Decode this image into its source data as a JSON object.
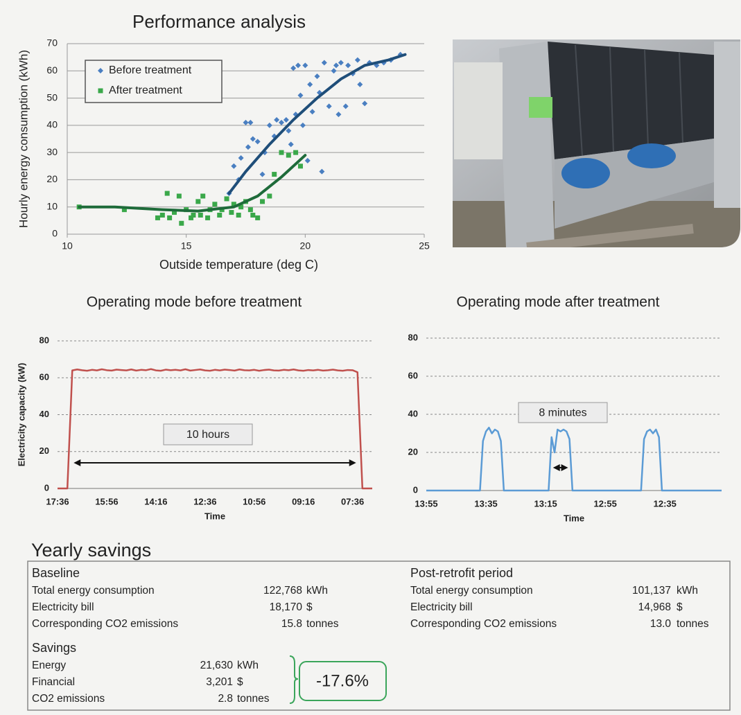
{
  "chart_data": [
    {
      "type": "scatter",
      "title": "Performance analysis",
      "x_label": "Outside temperature (deg C)",
      "y_label": "Hourly energy consumption (kWh)",
      "xlim": [
        10,
        25
      ],
      "xticks": [
        10,
        15,
        20,
        25
      ],
      "ylim": [
        0,
        70
      ],
      "yticks": [
        0,
        10,
        20,
        30,
        40,
        50,
        60,
        70
      ],
      "grid": true,
      "series": [
        {
          "name": "Before treatment",
          "color": "#4a7fc1",
          "marker": "diamond",
          "x": [
            16.8,
            17,
            17.2,
            17.3,
            17.5,
            17.7,
            17.6,
            17.8,
            18,
            18.2,
            18.3,
            18.5,
            18.7,
            18.8,
            19,
            19.2,
            19.3,
            19.4,
            19.5,
            19.6,
            19.7,
            19.8,
            19.9,
            20,
            20.1,
            20.2,
            20.3,
            20.5,
            20.6,
            20.7,
            20.8,
            21,
            21.2,
            21.3,
            21.4,
            21.5,
            21.7,
            21.8,
            22,
            22.2,
            22.3,
            22.5,
            22.7,
            23,
            23.3,
            23.6,
            24
          ],
          "values": [
            15,
            25,
            20,
            28,
            41,
            41,
            32,
            35,
            34,
            22,
            30,
            40,
            36,
            42,
            41,
            42,
            38,
            33,
            61,
            44,
            62,
            51,
            40,
            62,
            27,
            55,
            45,
            58,
            52,
            23,
            63,
            47,
            60,
            62,
            44,
            63,
            47,
            62,
            59,
            64,
            55,
            48,
            63,
            62,
            63,
            64,
            66
          ],
          "trend": {
            "color": "#1f4e79",
            "x": [
              16.8,
              17.5,
              18.5,
              19.5,
              20.5,
              21.5,
              22.5,
              23.5,
              24.2
            ],
            "values": [
              15,
              23,
              33,
              42,
              50,
              57,
              62,
              64,
              66
            ]
          }
        },
        {
          "name": "After treatment",
          "color": "#3aa84a",
          "marker": "square",
          "x": [
            10.5,
            12.4,
            13.8,
            14,
            14.2,
            14.3,
            14.5,
            14.7,
            14.8,
            15,
            15.2,
            15.3,
            15.5,
            15.6,
            15.7,
            15.9,
            16,
            16.2,
            16.4,
            16.5,
            16.7,
            16.9,
            17,
            17.2,
            17.3,
            17.5,
            17.7,
            17.8,
            18,
            18.2,
            18.5,
            18.7,
            19,
            19.3,
            19.6,
            19.8
          ],
          "values": [
            10,
            9,
            6,
            7,
            15,
            6,
            8,
            14,
            4,
            9,
            6,
            7,
            12,
            7,
            14,
            6,
            9,
            11,
            7,
            9,
            13,
            8,
            11,
            7,
            10,
            12,
            9,
            7,
            6,
            12,
            14,
            22,
            30,
            29,
            30,
            25
          ],
          "trend": {
            "color": "#1e6b3a",
            "x": [
              10.5,
              12,
              14,
              15.5,
              17,
              18,
              19,
              20
            ],
            "values": [
              10,
              10,
              9,
              8.5,
              10,
              14,
              21,
              29
            ]
          }
        }
      ],
      "legend": "upper left"
    },
    {
      "type": "line",
      "title": "Operating mode before treatment",
      "x_label": "Time",
      "y_label": "Electricity  capacity (kW)",
      "annotation": "10 hours",
      "ylim": [
        0,
        80
      ],
      "yticks": [
        0,
        20,
        40,
        60,
        80
      ],
      "grid": true,
      "color": "#c0504d",
      "categories": [
        "17:36",
        null,
        null,
        null,
        null,
        null,
        null,
        null,
        null,
        null,
        "15:56",
        null,
        null,
        null,
        null,
        null,
        null,
        null,
        null,
        null,
        "14:16",
        null,
        null,
        null,
        null,
        null,
        null,
        null,
        null,
        null,
        "12:36",
        null,
        null,
        null,
        null,
        null,
        null,
        null,
        null,
        null,
        "10:56",
        null,
        null,
        null,
        null,
        null,
        null,
        null,
        null,
        null,
        "09:16",
        null,
        null,
        null,
        null,
        null,
        null,
        null,
        null,
        null,
        "07:36",
        null,
        null,
        null,
        null
      ],
      "values": [
        0,
        0,
        0,
        64,
        64.5,
        64.1,
        63.8,
        64.3,
        64,
        64.6,
        64.1,
        63.9,
        64.4,
        64.2,
        64,
        64.5,
        63.9,
        64.3,
        64.1,
        64.7,
        64,
        63.8,
        64.4,
        64.1,
        64.3,
        64,
        64.6,
        63.9,
        64.2,
        64.5,
        64,
        63.8,
        64.3,
        64,
        64.4,
        64.2,
        63.9,
        64.5,
        64.1,
        64,
        64.3,
        63.8,
        64.2,
        64.4,
        64,
        63.9,
        64.3,
        64.1,
        64.5,
        64,
        63.8,
        64.2,
        64,
        64.3,
        63.9,
        64.1,
        64.4,
        64,
        63.8,
        64.2,
        64.1,
        63,
        0,
        0,
        0
      ]
    },
    {
      "type": "line",
      "title": "Operating mode after treatment",
      "x_label": "Time",
      "annotation": "8 minutes",
      "ylim": [
        0,
        80
      ],
      "yticks": [
        0,
        20,
        40,
        60,
        80
      ],
      "grid": true,
      "color": "#5b9bd5",
      "categories": [
        "13:55",
        null,
        null,
        null,
        null,
        null,
        null,
        null,
        null,
        null,
        null,
        null,
        null,
        null,
        null,
        null,
        null,
        null,
        null,
        null,
        "13:35",
        null,
        null,
        null,
        null,
        null,
        null,
        null,
        null,
        null,
        null,
        null,
        null,
        null,
        null,
        null,
        null,
        null,
        null,
        null,
        "13:15",
        null,
        null,
        null,
        null,
        null,
        null,
        null,
        null,
        null,
        null,
        null,
        null,
        null,
        null,
        null,
        null,
        null,
        null,
        null,
        "12:55",
        null,
        null,
        null,
        null,
        null,
        null,
        null,
        null,
        null,
        null,
        null,
        null,
        null,
        null,
        null,
        null,
        null,
        null,
        null,
        "12:35",
        null,
        null,
        null,
        null,
        null,
        null,
        null,
        null,
        null,
        null,
        null,
        null,
        null,
        null,
        null,
        null,
        null,
        null,
        null
      ],
      "values": [
        0,
        0,
        0,
        0,
        0,
        0,
        0,
        0,
        0,
        0,
        0,
        0,
        0,
        0,
        0,
        0,
        0,
        0,
        0,
        26,
        31,
        33,
        30,
        32,
        31,
        26,
        0,
        0,
        0,
        0,
        0,
        0,
        0,
        0,
        0,
        0,
        0,
        0,
        0,
        0,
        0,
        0,
        28,
        20,
        32,
        31,
        32,
        31,
        27,
        0,
        0,
        0,
        0,
        0,
        0,
        0,
        0,
        0,
        0,
        0,
        0,
        0,
        0,
        0,
        0,
        0,
        0,
        0,
        0,
        0,
        0,
        0,
        0,
        27,
        31,
        32,
        30,
        32,
        28,
        0,
        0,
        0,
        0,
        0,
        0,
        0,
        0,
        0,
        0,
        0,
        0,
        0,
        0,
        0,
        0,
        0,
        0,
        0,
        0,
        0
      ]
    }
  ],
  "savings": {
    "title": "Yearly savings",
    "baseline": {
      "heading": "Baseline",
      "rows": [
        [
          "Total energy consumption",
          "122,768",
          "kWh"
        ],
        [
          "Electricity bill",
          "18,170",
          "$"
        ],
        [
          "Corresponding CO2 emissions",
          "15.8",
          "tonnes"
        ]
      ]
    },
    "post": {
      "heading": "Post-retrofit period",
      "rows": [
        [
          "Total energy consumption",
          "101,137",
          "kWh"
        ],
        [
          "Electricity bill",
          "14,968",
          "$"
        ],
        [
          "Corresponding CO2 emissions",
          "13.0",
          "tonnes"
        ]
      ]
    },
    "savings": {
      "heading": "Savings",
      "rows": [
        [
          "Energy",
          "21,630",
          "kWh"
        ],
        [
          "Financial",
          "3,201",
          "$"
        ],
        [
          "CO2 emissions",
          "2.8",
          "tonnes"
        ]
      ]
    },
    "badge": "-17.6%"
  }
}
